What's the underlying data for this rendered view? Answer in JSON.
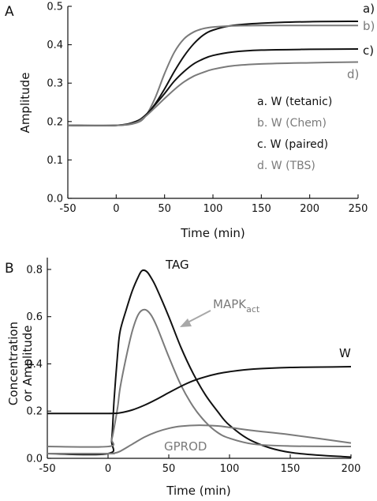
{
  "colors": {
    "black": "#111111",
    "gray": "#7a7a7a",
    "arrow": "#a8a8a8"
  },
  "chart_data": [
    {
      "type": "line",
      "panel_label": "A",
      "title": "",
      "xlabel": "Time (min)",
      "ylabel": "Amplitude",
      "xlim": [
        -50,
        250
      ],
      "ylim": [
        0,
        0.5
      ],
      "xticks": [
        "-50",
        "0",
        "50",
        "100",
        "150",
        "200",
        "250"
      ],
      "yticks": [
        "0.0",
        "0.1",
        "0.2",
        "0.3",
        "0.4",
        "0.5"
      ],
      "legend_placement": "center-right",
      "series": [
        {
          "tag": "a)",
          "legend": "a. W (tetanic)",
          "color": "#111111",
          "x": [
            -50,
            0,
            20,
            30,
            40,
            50,
            60,
            70,
            80,
            90,
            100,
            120,
            150,
            200,
            250
          ],
          "y": [
            0.19,
            0.19,
            0.198,
            0.215,
            0.245,
            0.285,
            0.33,
            0.37,
            0.402,
            0.425,
            0.438,
            0.45,
            0.456,
            0.46,
            0.461
          ]
        },
        {
          "tag": "b)",
          "legend": "b. W (Chem)",
          "color": "#7a7a7a",
          "x": [
            -50,
            0,
            20,
            30,
            40,
            50,
            60,
            70,
            80,
            90,
            100,
            120,
            150,
            200,
            250
          ],
          "y": [
            0.19,
            0.19,
            0.196,
            0.213,
            0.26,
            0.325,
            0.38,
            0.415,
            0.433,
            0.442,
            0.446,
            0.449,
            0.45,
            0.45,
            0.45
          ]
        },
        {
          "tag": "c)",
          "legend": "c. W (paired)",
          "color": "#111111",
          "x": [
            -50,
            0,
            20,
            30,
            40,
            50,
            60,
            70,
            80,
            90,
            100,
            120,
            150,
            200,
            250
          ],
          "y": [
            0.19,
            0.19,
            0.2,
            0.216,
            0.243,
            0.273,
            0.305,
            0.33,
            0.35,
            0.363,
            0.372,
            0.381,
            0.386,
            0.388,
            0.389
          ]
        },
        {
          "tag": "d)",
          "legend": "d. W (TBS)",
          "color": "#7a7a7a",
          "x": [
            -50,
            0,
            20,
            30,
            40,
            50,
            60,
            70,
            80,
            90,
            100,
            120,
            150,
            200,
            250
          ],
          "y": [
            0.19,
            0.19,
            0.197,
            0.213,
            0.236,
            0.26,
            0.283,
            0.303,
            0.318,
            0.328,
            0.336,
            0.345,
            0.35,
            0.353,
            0.355
          ]
        }
      ]
    },
    {
      "type": "line",
      "panel_label": "B",
      "title": "",
      "xlabel": "Time (min)",
      "ylabel": [
        "Concentration",
        "or Amplitude"
      ],
      "xlim": [
        -50,
        200
      ],
      "ylim": [
        0,
        0.85
      ],
      "xticks": [
        "-50",
        "0",
        "50",
        "100",
        "150",
        "200"
      ],
      "yticks": [
        "0.0",
        "0.2",
        "0.4",
        "0.6",
        "0.8"
      ],
      "series": [
        {
          "label": "TAG",
          "color": "#111111",
          "x": [
            -50,
            0,
            3,
            5,
            8,
            10,
            15,
            20,
            25,
            28,
            32,
            36,
            40,
            50,
            60,
            70,
            80,
            90,
            100,
            120,
            150,
            200
          ],
          "y": [
            0.02,
            0.02,
            0.08,
            0.25,
            0.45,
            0.54,
            0.63,
            0.71,
            0.77,
            0.795,
            0.79,
            0.76,
            0.72,
            0.6,
            0.47,
            0.36,
            0.27,
            0.2,
            0.14,
            0.07,
            0.025,
            0.005
          ]
        },
        {
          "label_main": "MAPK",
          "label_sub": "act",
          "color": "#7a7a7a",
          "x": [
            -50,
            0,
            3,
            5,
            8,
            10,
            15,
            20,
            25,
            30,
            35,
            40,
            50,
            60,
            70,
            80,
            90,
            100,
            120,
            150,
            200
          ],
          "y": [
            0.05,
            0.05,
            0.08,
            0.13,
            0.22,
            0.3,
            0.43,
            0.54,
            0.61,
            0.63,
            0.61,
            0.56,
            0.43,
            0.31,
            0.22,
            0.155,
            0.11,
            0.085,
            0.06,
            0.052,
            0.05
          ]
        },
        {
          "label": "W",
          "color": "#111111",
          "x": [
            -50,
            0,
            10,
            20,
            30,
            40,
            50,
            60,
            70,
            80,
            90,
            100,
            120,
            150,
            200
          ],
          "y": [
            0.19,
            0.19,
            0.193,
            0.205,
            0.225,
            0.25,
            0.278,
            0.305,
            0.328,
            0.345,
            0.358,
            0.367,
            0.378,
            0.385,
            0.388
          ]
        },
        {
          "label": "GPROD",
          "color": "#7a7a7a",
          "x": [
            -50,
            0,
            5,
            10,
            20,
            30,
            40,
            50,
            60,
            75,
            90,
            100,
            120,
            150,
            200
          ],
          "y": [
            0.02,
            0.02,
            0.022,
            0.03,
            0.06,
            0.09,
            0.112,
            0.127,
            0.136,
            0.14,
            0.137,
            0.131,
            0.117,
            0.1,
            0.065
          ]
        }
      ]
    }
  ]
}
